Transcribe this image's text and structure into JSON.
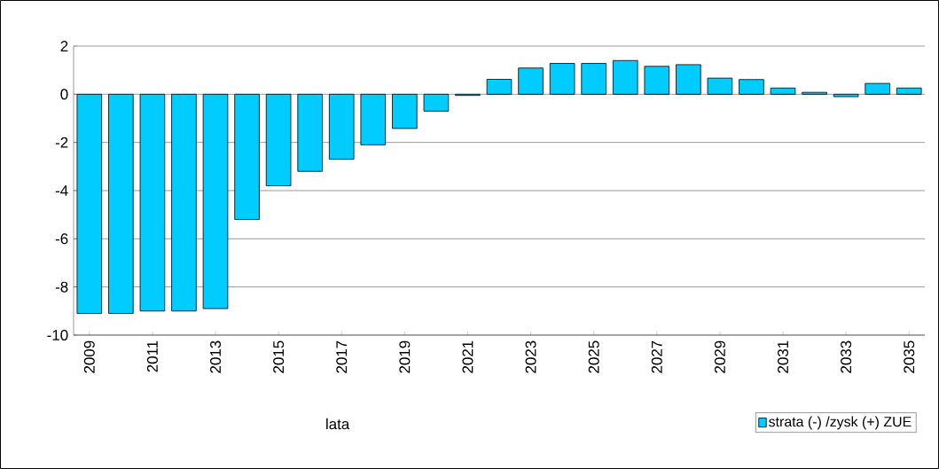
{
  "chart_data": {
    "type": "bar",
    "xlabel": "lata",
    "categories": [
      "2009",
      null,
      "2011",
      null,
      "2013",
      null,
      "2015",
      null,
      "2017",
      null,
      "2019",
      null,
      "2021",
      null,
      "2023",
      null,
      "2025",
      null,
      "2027",
      null,
      "2029",
      null,
      "2031",
      null,
      "2033",
      null,
      "2035"
    ],
    "series": [
      {
        "name": "strata (-) /zysk (+) ZUE",
        "color": "#00ccff",
        "values": [
          -9.1,
          -9.1,
          -9.0,
          -9.0,
          -8.9,
          -5.2,
          -3.8,
          -3.2,
          -2.7,
          -2.1,
          -1.42,
          -0.7,
          -0.05,
          0.62,
          1.09,
          1.28,
          1.28,
          1.4,
          1.16,
          1.23,
          0.67,
          0.61,
          0.26,
          0.08,
          -0.1,
          0.45,
          0.26
        ]
      }
    ],
    "ylim": [
      -10,
      2
    ],
    "yticks": [
      -10,
      -8,
      -6,
      -4,
      -2,
      0,
      2
    ],
    "grid": "y",
    "legend": "bottom right"
  }
}
